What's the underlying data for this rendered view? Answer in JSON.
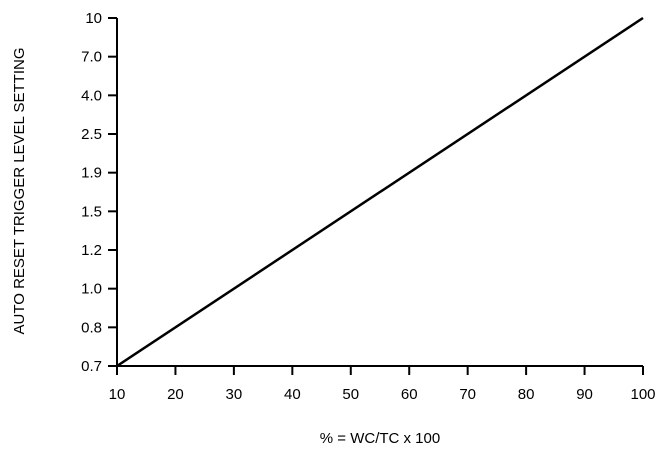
{
  "chart_data": {
    "type": "line",
    "title": "",
    "xlabel": "% = WC/TC x 100",
    "ylabel": "AUTO RESET TRIGGER LEVEL SETTING",
    "x_ticks": [
      "10",
      "20",
      "30",
      "40",
      "50",
      "60",
      "70",
      "80",
      "90",
      "100"
    ],
    "y_ticks": [
      "0.7",
      "0.8",
      "1.0",
      "1.2",
      "1.5",
      "1.9",
      "2.5",
      "4.0",
      "7.0",
      "10"
    ],
    "xlim": [
      10,
      100
    ],
    "y_scale": "categorical ticks, evenly spaced",
    "grid": false,
    "legend": "none",
    "line_color": "#000000",
    "series": [
      {
        "x": [
          10,
          100
        ],
        "y": [
          0.7,
          10
        ]
      }
    ]
  }
}
